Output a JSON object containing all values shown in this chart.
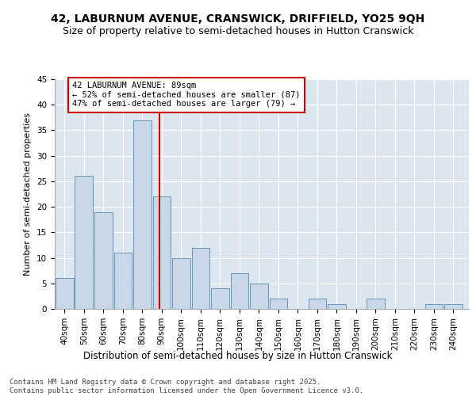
{
  "title1": "42, LABURNUM AVENUE, CRANSWICK, DRIFFIELD, YO25 9QH",
  "title2": "Size of property relative to semi-detached houses in Hutton Cranswick",
  "xlabel": "Distribution of semi-detached houses by size in Hutton Cranswick",
  "ylabel": "Number of semi-detached properties",
  "bins": [
    40,
    50,
    60,
    70,
    80,
    90,
    100,
    110,
    120,
    130,
    140,
    150,
    160,
    170,
    180,
    190,
    200,
    210,
    220,
    230,
    240
  ],
  "values": [
    6,
    26,
    19,
    11,
    37,
    22,
    10,
    12,
    4,
    7,
    5,
    2,
    0,
    2,
    1,
    0,
    2,
    0,
    0,
    1,
    1
  ],
  "bar_color": "#c8d8e8",
  "bar_edge_color": "#5a8ab0",
  "property_size": 89,
  "vline_color": "#cc0000",
  "annotation_text": "42 LABURNUM AVENUE: 89sqm\n← 52% of semi-detached houses are smaller (87)\n47% of semi-detached houses are larger (79) →",
  "annotation_box_color": "#ffffff",
  "annotation_border_color": "#cc0000",
  "ylim": [
    0,
    45
  ],
  "yticks": [
    0,
    5,
    10,
    15,
    20,
    25,
    30,
    35,
    40,
    45
  ],
  "background_color": "#dce6f0",
  "grid_color": "#ffffff",
  "footer_text": "Contains HM Land Registry data © Crown copyright and database right 2025.\nContains public sector information licensed under the Open Government Licence v3.0.",
  "title1_fontsize": 10,
  "title2_fontsize": 9,
  "xlabel_fontsize": 8.5,
  "ylabel_fontsize": 8,
  "tick_fontsize": 7.5,
  "annotation_fontsize": 7.5,
  "footer_fontsize": 6.5
}
